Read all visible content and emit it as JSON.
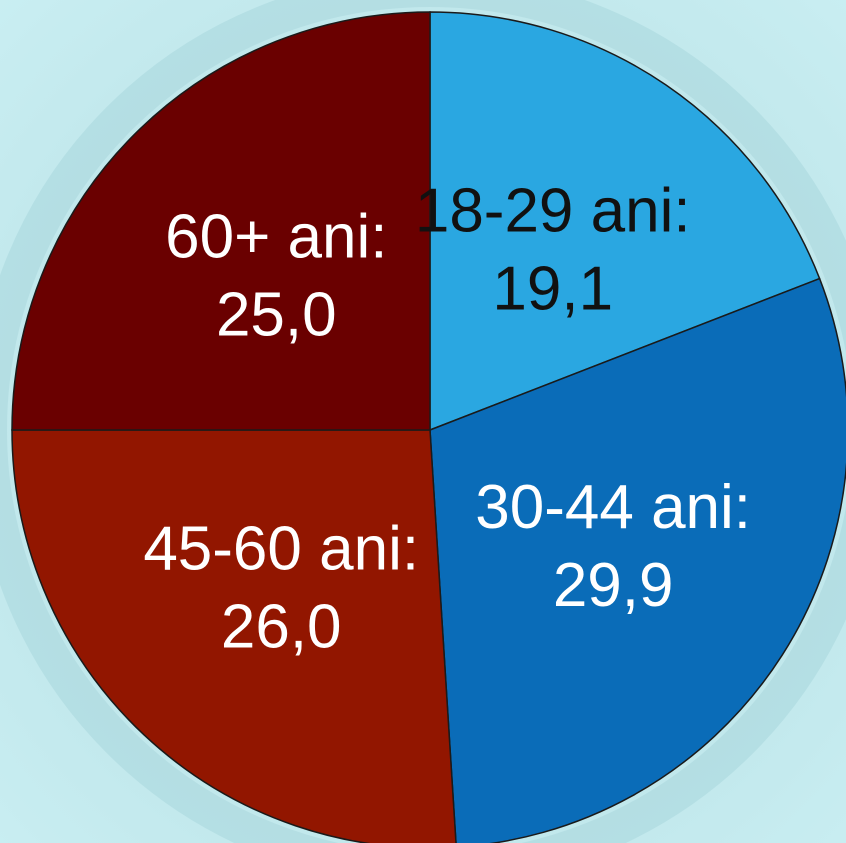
{
  "chart_data": {
    "type": "pie",
    "slices": [
      {
        "label": "18-29 ani:",
        "value": 19.1,
        "value_text": "19,1",
        "color": "#2aa7e1",
        "text_color": "#111111"
      },
      {
        "label": "30-44 ani:",
        "value": 29.9,
        "value_text": "29,9",
        "color": "#0a6cb8",
        "text_color": "#ffffff"
      },
      {
        "label": "45-60 ani:",
        "value": 26.0,
        "value_text": "26,0",
        "color": "#921600",
        "text_color": "#ffffff"
      },
      {
        "label": "60+ ani:",
        "value": 25.0,
        "value_text": "25,0",
        "color": "#6a0000",
        "text_color": "#ffffff"
      }
    ],
    "start": "top",
    "direction": "clockwise"
  }
}
